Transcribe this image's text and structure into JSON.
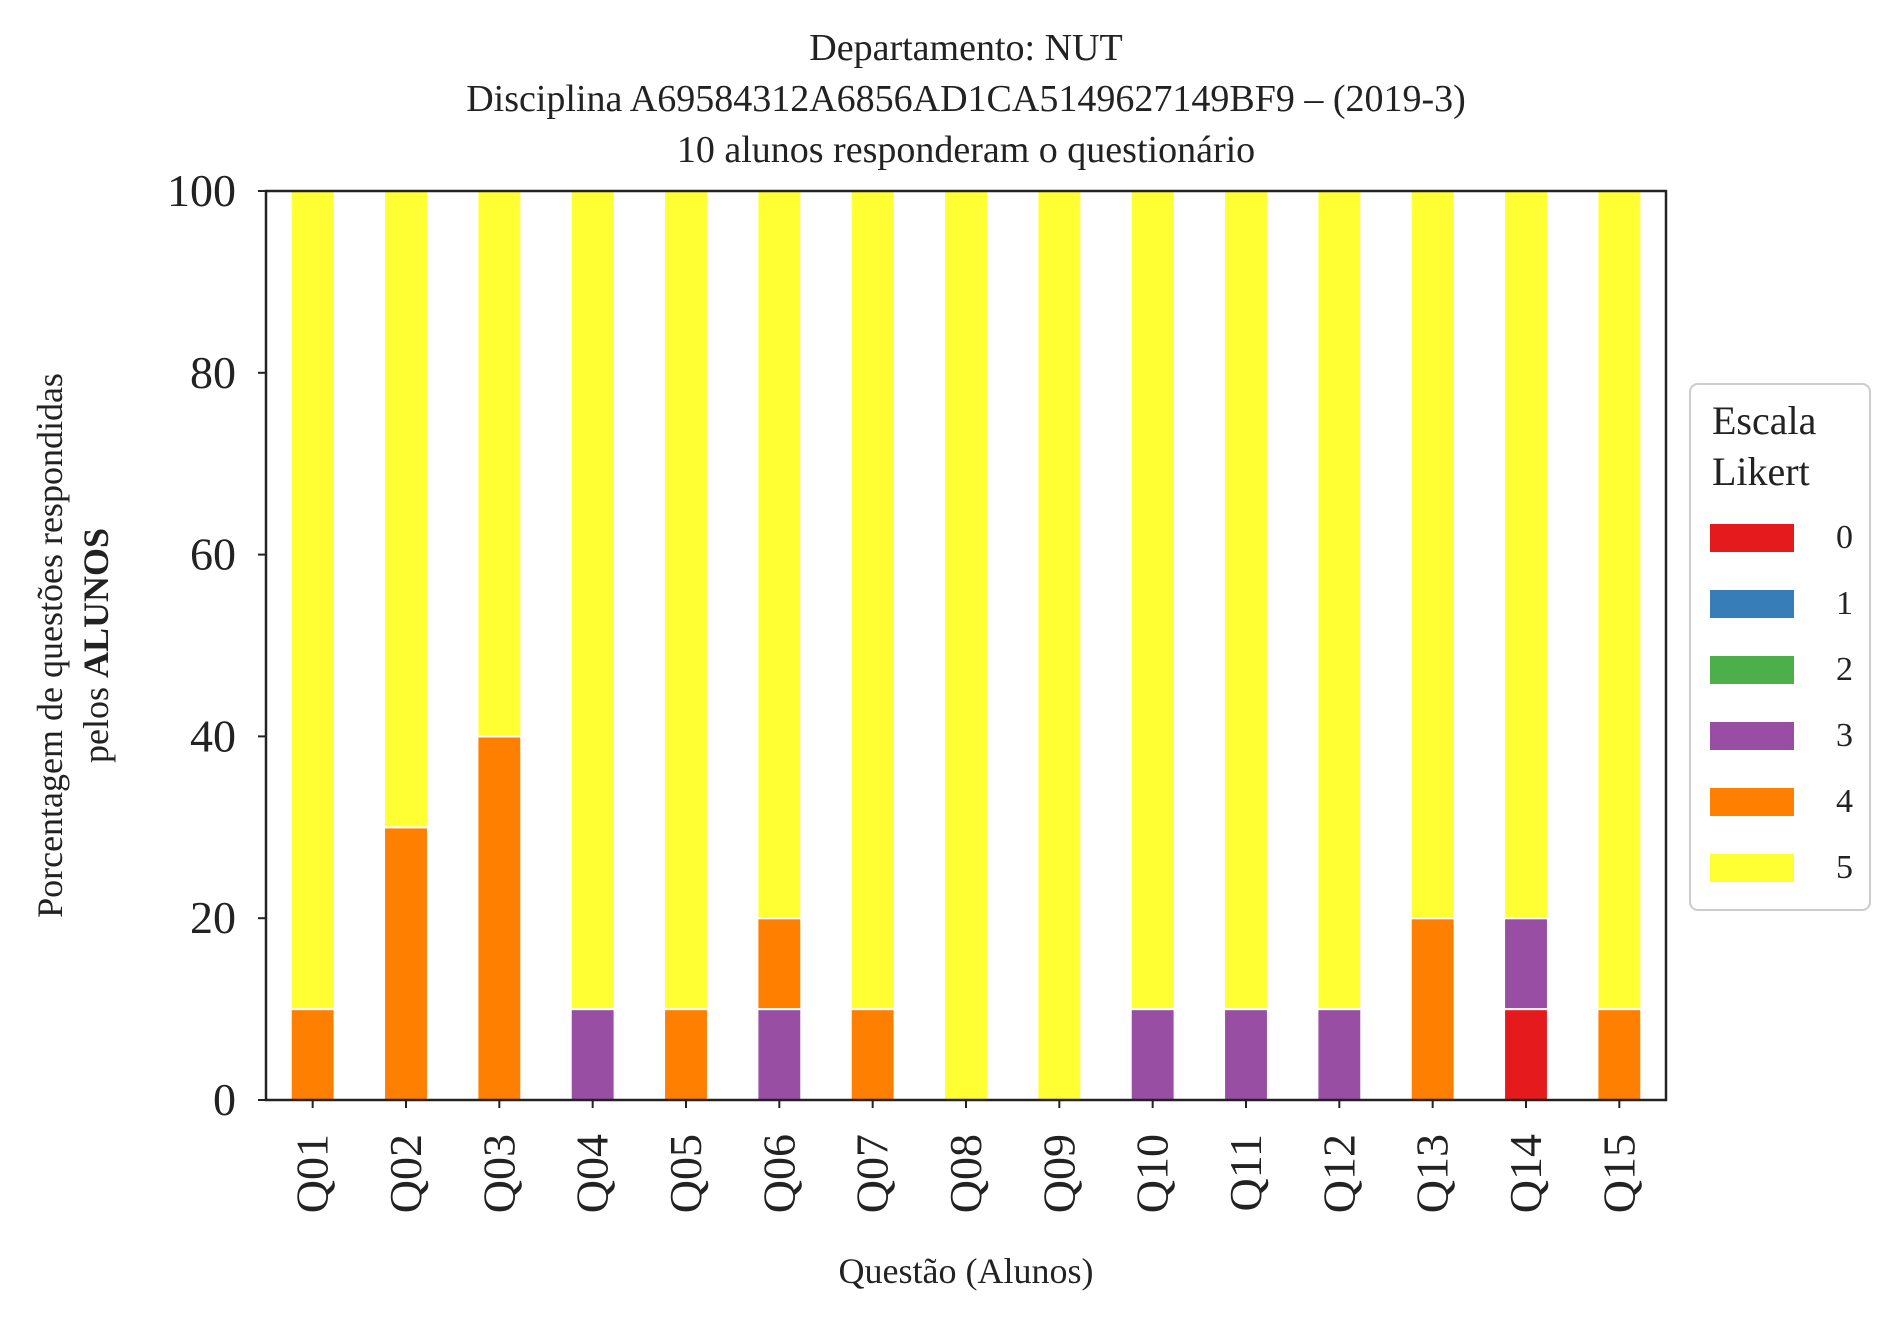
{
  "chart_data": {
    "type": "bar",
    "stacked": true,
    "title_lines": [
      "Departamento: NUT",
      "Disciplina A69584312A6856AD1CA5149627149BF9 – (2019-3)",
      "10 alunos responderam o questionário"
    ],
    "xlabel": "Questão (Alunos)",
    "ylabel_line1": "Porcentagem de questões respondidas",
    "ylabel_line2_prefix": "pelos ",
    "ylabel_line2_bold": "ALUNOS",
    "ylim": [
      0,
      100
    ],
    "yticks": [
      "0",
      "20",
      "40",
      "60",
      "80",
      "100"
    ],
    "grid": false,
    "categories": [
      "Q01",
      "Q02",
      "Q03",
      "Q04",
      "Q05",
      "Q06",
      "Q07",
      "Q08",
      "Q09",
      "Q10",
      "Q11",
      "Q12",
      "Q13",
      "Q14",
      "Q15"
    ],
    "series": [
      {
        "name": "0",
        "color": "#e41a1c",
        "values": [
          0,
          0,
          0,
          0,
          0,
          0,
          0,
          0,
          0,
          0,
          0,
          0,
          0,
          10,
          0
        ]
      },
      {
        "name": "1",
        "color": "#377eb8",
        "values": [
          0,
          0,
          0,
          0,
          0,
          0,
          0,
          0,
          0,
          0,
          0,
          0,
          0,
          0,
          0
        ]
      },
      {
        "name": "2",
        "color": "#4daf4a",
        "values": [
          0,
          0,
          0,
          0,
          0,
          0,
          0,
          0,
          0,
          0,
          0,
          0,
          0,
          0,
          0
        ]
      },
      {
        "name": "3",
        "color": "#984ea3",
        "values": [
          0,
          0,
          0,
          10,
          0,
          10,
          0,
          0,
          0,
          10,
          10,
          10,
          0,
          10,
          0
        ]
      },
      {
        "name": "4",
        "color": "#ff7f00",
        "values": [
          10,
          30,
          40,
          0,
          10,
          10,
          10,
          0,
          0,
          0,
          0,
          0,
          20,
          0,
          10
        ]
      },
      {
        "name": "5",
        "color": "#ffff33",
        "values": [
          90,
          70,
          60,
          90,
          90,
          80,
          90,
          100,
          100,
          90,
          90,
          90,
          80,
          80,
          90
        ]
      }
    ],
    "legend": {
      "title_lines": [
        "Escala",
        "Likert"
      ],
      "position": "right-center"
    }
  }
}
